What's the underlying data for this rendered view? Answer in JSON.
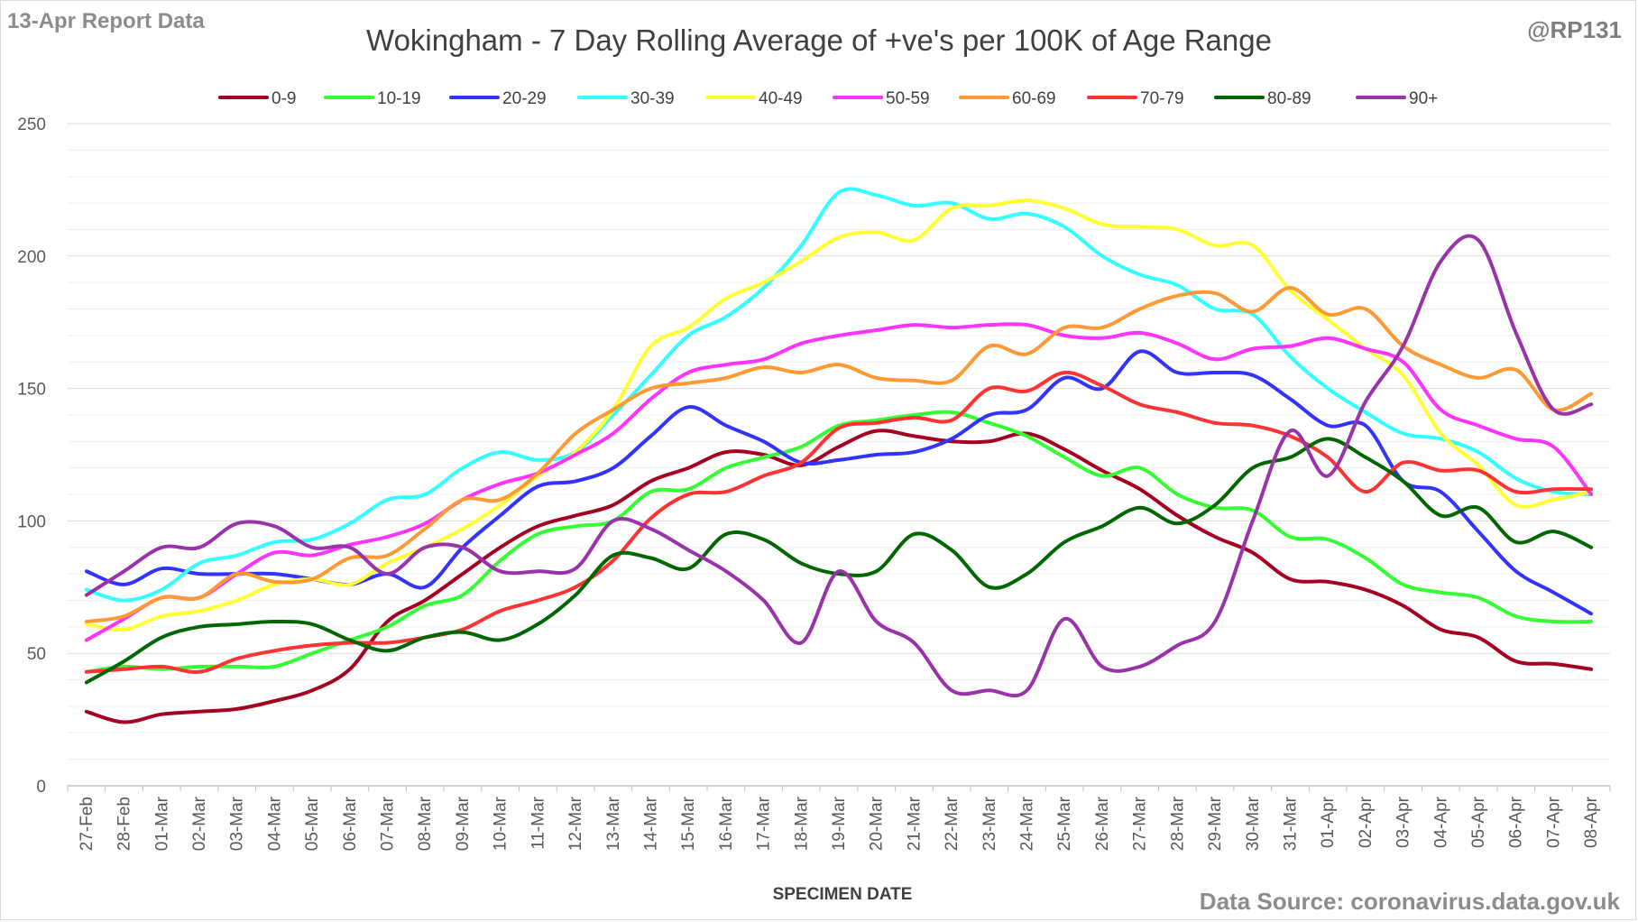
{
  "report_label": "13-Apr Report Data",
  "author_handle": "@RP131",
  "source_label": "Data Source: coronavirus.data.gov.uk",
  "chart_data": {
    "type": "line",
    "title": "Wokingham - 7 Day Rolling Average of +ve's per 100K of Age Range",
    "xlabel": "SPECIMEN DATE",
    "ylabel": "",
    "ylim": [
      0,
      250
    ],
    "yticks": [
      0,
      50,
      100,
      150,
      200,
      250
    ],
    "grid": "horizontal",
    "legend_position": "top",
    "categories": [
      "27-Feb",
      "28-Feb",
      "01-Mar",
      "02-Mar",
      "03-Mar",
      "04-Mar",
      "05-Mar",
      "06-Mar",
      "07-Mar",
      "08-Mar",
      "09-Mar",
      "10-Mar",
      "11-Mar",
      "12-Mar",
      "13-Mar",
      "14-Mar",
      "15-Mar",
      "16-Mar",
      "17-Mar",
      "18-Mar",
      "19-Mar",
      "20-Mar",
      "21-Mar",
      "22-Mar",
      "23-Mar",
      "24-Mar",
      "25-Mar",
      "26-Mar",
      "27-Mar",
      "28-Mar",
      "29-Mar",
      "30-Mar",
      "31-Mar",
      "01-Apr",
      "02-Apr",
      "03-Apr",
      "04-Apr",
      "05-Apr",
      "06-Apr",
      "07-Apr",
      "08-Apr"
    ],
    "series": [
      {
        "name": "0-9",
        "color": "#a50021",
        "values": [
          28,
          24,
          27,
          28,
          29,
          32,
          36,
          44,
          62,
          70,
          80,
          90,
          98,
          102,
          106,
          115,
          120,
          126,
          125,
          121,
          128,
          134,
          132,
          130,
          130,
          133,
          127,
          119,
          112,
          102,
          94,
          88,
          78,
          77,
          74,
          68,
          59,
          56,
          47,
          46,
          44
        ]
      },
      {
        "name": "10-19",
        "color": "#33ff33",
        "values": [
          43,
          45,
          44,
          45,
          45,
          45,
          50,
          55,
          60,
          68,
          72,
          85,
          95,
          98,
          100,
          111,
          112,
          120,
          124,
          128,
          136,
          138,
          140,
          141,
          137,
          132,
          124,
          117,
          120,
          110,
          105,
          104,
          94,
          93,
          86,
          76,
          73,
          71,
          64,
          62,
          62
        ]
      },
      {
        "name": "20-29",
        "color": "#3333ff",
        "values": [
          81,
          76,
          82,
          80,
          80,
          80,
          78,
          76,
          80,
          75,
          90,
          102,
          113,
          115,
          120,
          132,
          143,
          136,
          130,
          122,
          123,
          125,
          126,
          131,
          140,
          142,
          154,
          150,
          164,
          156,
          156,
          155,
          146,
          136,
          136,
          115,
          111,
          96,
          81,
          73,
          65
        ]
      },
      {
        "name": "30-39",
        "color": "#33ffff",
        "values": [
          74,
          70,
          74,
          84,
          87,
          92,
          93,
          99,
          108,
          110,
          120,
          126,
          123,
          126,
          140,
          155,
          170,
          177,
          188,
          204,
          224,
          223,
          219,
          220,
          214,
          216,
          211,
          200,
          193,
          189,
          180,
          178,
          162,
          150,
          141,
          133,
          131,
          126,
          116,
          111,
          110
        ]
      },
      {
        "name": "40-49",
        "color": "#ffff33",
        "values": [
          61,
          59,
          64,
          66,
          70,
          76,
          78,
          76,
          84,
          90,
          97,
          106,
          117,
          126,
          142,
          166,
          173,
          184,
          190,
          198,
          207,
          209,
          206,
          218,
          219,
          221,
          218,
          212,
          211,
          210,
          204,
          204,
          187,
          176,
          165,
          155,
          133,
          121,
          106,
          108,
          111
        ]
      },
      {
        "name": "50-59",
        "color": "#ff33ff",
        "values": [
          55,
          63,
          71,
          71,
          80,
          88,
          87,
          91,
          94,
          99,
          108,
          114,
          118,
          125,
          133,
          146,
          156,
          159,
          161,
          167,
          170,
          172,
          174,
          173,
          174,
          174,
          170,
          169,
          171,
          167,
          161,
          165,
          166,
          169,
          165,
          160,
          142,
          136,
          131,
          128,
          110
        ]
      },
      {
        "name": "60-69",
        "color": "#ff9933",
        "values": [
          62,
          64,
          71,
          71,
          80,
          77,
          78,
          86,
          87,
          97,
          108,
          108,
          118,
          133,
          142,
          150,
          152,
          154,
          158,
          156,
          159,
          154,
          153,
          153,
          166,
          163,
          173,
          173,
          180,
          185,
          186,
          179,
          188,
          178,
          180,
          166,
          159,
          154,
          157,
          142,
          148
        ]
      },
      {
        "name": "70-79",
        "color": "#ff3333",
        "values": [
          43,
          44,
          45,
          43,
          48,
          51,
          53,
          54,
          54,
          56,
          59,
          66,
          70,
          75,
          85,
          101,
          110,
          111,
          117,
          122,
          135,
          137,
          139,
          138,
          150,
          149,
          156,
          151,
          144,
          141,
          137,
          136,
          132,
          124,
          111,
          122,
          119,
          119,
          111,
          112,
          112
        ]
      },
      {
        "name": "80-89",
        "color": "#006600",
        "values": [
          39,
          47,
          56,
          60,
          61,
          62,
          61,
          55,
          51,
          56,
          58,
          55,
          61,
          72,
          87,
          86,
          82,
          95,
          93,
          84,
          80,
          81,
          95,
          89,
          75,
          80,
          92,
          98,
          105,
          99,
          106,
          120,
          124,
          131,
          124,
          115,
          102,
          105,
          92,
          96,
          90
        ]
      },
      {
        "name": "90+",
        "color": "#9933aa",
        "values": [
          72,
          81,
          90,
          90,
          99,
          98,
          90,
          90,
          80,
          90,
          90,
          81,
          81,
          82,
          100,
          97,
          89,
          81,
          70,
          54,
          81,
          62,
          54,
          36,
          36,
          36,
          63,
          45,
          45,
          53,
          62,
          100,
          134,
          117,
          145,
          166,
          198,
          206,
          171,
          142,
          144
        ]
      }
    ]
  }
}
